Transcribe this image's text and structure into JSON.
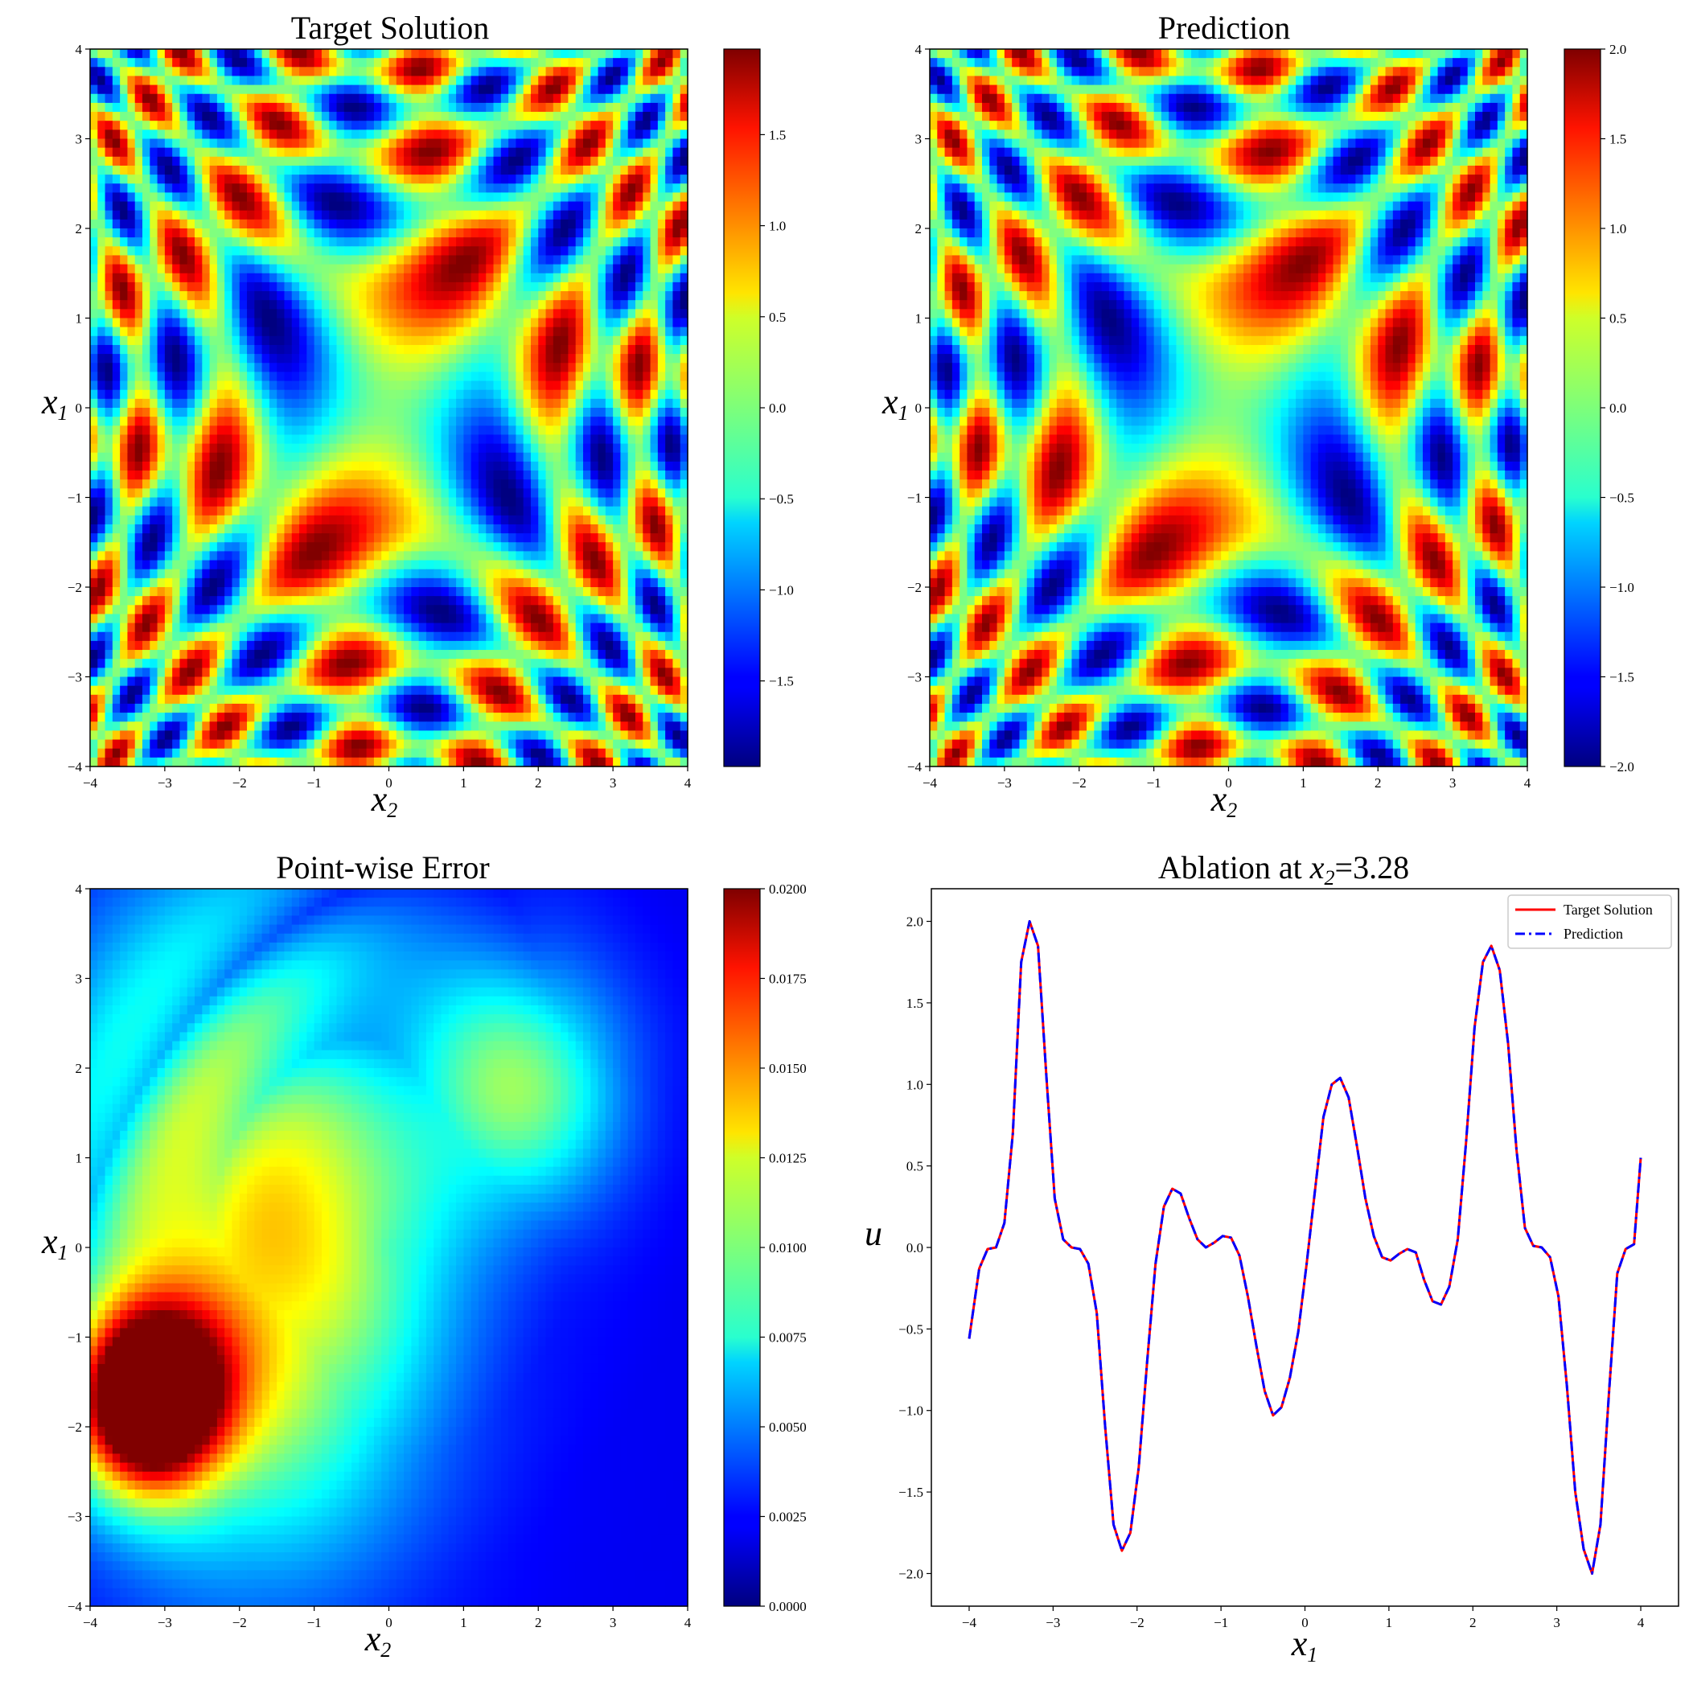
{
  "chart_data": [
    {
      "type": "heatmap",
      "title": "Target Solution",
      "xlabel": "x",
      "xlabel_sub": "2",
      "ylabel": "x",
      "ylabel_sub": "1",
      "xlim": [
        -4,
        4
      ],
      "ylim": [
        -4,
        4
      ],
      "x_ticks": [
        "−4",
        "−3",
        "−2",
        "−1",
        "0",
        "1",
        "2",
        "3",
        "4"
      ],
      "y_ticks": [
        "−4",
        "−3",
        "−2",
        "−1",
        "0",
        "1",
        "2",
        "3",
        "4"
      ],
      "colorbar": {
        "colormap": "jet",
        "range": [
          -1.97,
          1.97
        ],
        "tick_values": [
          -1.5,
          -1.0,
          -0.5,
          0.0,
          0.5,
          1.0,
          1.5
        ],
        "tick_labels": [
          "−1.5",
          "−1.0",
          "−0.5",
          "0.0",
          "0.5",
          "1.0",
          "1.5"
        ]
      },
      "field": "oscillatory saddle pattern, max ≈ 2 along x1 = x2 diagonals"
    },
    {
      "type": "heatmap",
      "title": "Prediction",
      "xlabel": "x",
      "xlabel_sub": "2",
      "ylabel": "x",
      "ylabel_sub": "1",
      "xlim": [
        -4,
        4
      ],
      "ylim": [
        -4,
        4
      ],
      "x_ticks": [
        "−4",
        "−3",
        "−2",
        "−1",
        "0",
        "1",
        "2",
        "3",
        "4"
      ],
      "y_ticks": [
        "−4",
        "−3",
        "−2",
        "−1",
        "0",
        "1",
        "2",
        "3",
        "4"
      ],
      "colorbar": {
        "colormap": "jet",
        "range": [
          -2.0,
          2.0
        ],
        "tick_values": [
          -2.0,
          -1.5,
          -1.0,
          -0.5,
          0.0,
          0.5,
          1.0,
          1.5,
          2.0
        ],
        "tick_labels": [
          "−2.0",
          "−1.5",
          "−1.0",
          "−0.5",
          "0.0",
          "0.5",
          "1.0",
          "1.5",
          "2.0"
        ]
      }
    },
    {
      "type": "heatmap",
      "title": "Point-wise Error",
      "xlabel": "x",
      "xlabel_sub": "2",
      "ylabel": "x",
      "ylabel_sub": "1",
      "xlim": [
        -4,
        4
      ],
      "ylim": [
        -4,
        4
      ],
      "x_ticks": [
        "−4",
        "−3",
        "−2",
        "−1",
        "0",
        "1",
        "2",
        "3",
        "4"
      ],
      "y_ticks": [
        "−4",
        "−3",
        "−2",
        "−1",
        "0",
        "1",
        "2",
        "3",
        "4"
      ],
      "colorbar": {
        "colormap": "jet",
        "range": [
          0.0,
          0.02
        ],
        "tick_values": [
          0.0,
          0.0025,
          0.005,
          0.0075,
          0.01,
          0.0125,
          0.015,
          0.0175,
          0.02
        ],
        "tick_labels": [
          "0.0000",
          "0.0025",
          "0.0050",
          "0.0075",
          "0.0100",
          "0.0125",
          "0.0150",
          "0.0175",
          "0.0200"
        ]
      },
      "hotspots": [
        {
          "x2": -3.2,
          "x1": -1.7,
          "value": 0.02
        },
        {
          "x2": 1.8,
          "x1": 1.9,
          "value": 0.013
        }
      ]
    },
    {
      "type": "line",
      "title_prefix": "Ablation at ",
      "title_var": "x",
      "title_sub": "2",
      "title_suffix": "=3.28",
      "xlabel": "x",
      "xlabel_sub": "1",
      "ylabel": "u",
      "xlim": [
        -4.45,
        4.45
      ],
      "ylim": [
        -2.2,
        2.2
      ],
      "x_ticks": [
        -4,
        -3,
        -2,
        -1,
        0,
        1,
        2,
        3,
        4
      ],
      "x_tick_labels": [
        "−4",
        "−3",
        "−2",
        "−1",
        "0",
        "1",
        "2",
        "3",
        "4"
      ],
      "y_ticks": [
        -2.0,
        -1.5,
        -1.0,
        -0.5,
        0.0,
        0.5,
        1.0,
        1.5,
        2.0
      ],
      "y_tick_labels": [
        "−2.0",
        "−1.5",
        "−1.0",
        "−0.5",
        "0.0",
        "0.5",
        "1.0",
        "1.5",
        "2.0"
      ],
      "legend_position": "top-right",
      "x": [
        -4.0,
        -3.88,
        -3.78,
        -3.68,
        -3.58,
        -3.48,
        -3.38,
        -3.28,
        -3.18,
        -3.08,
        -2.98,
        -2.88,
        -2.78,
        -2.68,
        -2.58,
        -2.48,
        -2.38,
        -2.28,
        -2.18,
        -2.08,
        -1.98,
        -1.88,
        -1.78,
        -1.68,
        -1.58,
        -1.48,
        -1.38,
        -1.28,
        -1.18,
        -1.08,
        -0.98,
        -0.88,
        -0.78,
        -0.68,
        -0.58,
        -0.48,
        -0.38,
        -0.28,
        -0.18,
        -0.08,
        0.02,
        0.12,
        0.22,
        0.32,
        0.42,
        0.52,
        0.62,
        0.72,
        0.82,
        0.92,
        1.02,
        1.12,
        1.22,
        1.32,
        1.42,
        1.52,
        1.62,
        1.72,
        1.82,
        1.92,
        2.02,
        2.12,
        2.22,
        2.32,
        2.42,
        2.52,
        2.62,
        2.72,
        2.82,
        2.92,
        3.02,
        3.12,
        3.22,
        3.32,
        3.42,
        3.52,
        3.62,
        3.72,
        3.82,
        3.92,
        4.0
      ],
      "series": [
        {
          "name": "Target Solution",
          "color": "#ff0000",
          "style": "solid",
          "values": [
            -0.56,
            -0.13,
            -0.01,
            0.0,
            0.15,
            0.7,
            1.75,
            2.0,
            1.85,
            1.05,
            0.3,
            0.05,
            0.0,
            -0.01,
            -0.1,
            -0.4,
            -1.1,
            -1.7,
            -1.86,
            -1.75,
            -1.35,
            -0.7,
            -0.1,
            0.25,
            0.36,
            0.33,
            0.18,
            0.05,
            0.0,
            0.03,
            0.07,
            0.06,
            -0.05,
            -0.3,
            -0.6,
            -0.88,
            -1.03,
            -0.98,
            -0.8,
            -0.52,
            -0.1,
            0.35,
            0.8,
            1.0,
            1.04,
            0.92,
            0.62,
            0.3,
            0.07,
            -0.06,
            -0.08,
            -0.04,
            -0.01,
            -0.03,
            -0.2,
            -0.33,
            -0.35,
            -0.24,
            0.05,
            0.65,
            1.35,
            1.75,
            1.85,
            1.7,
            1.25,
            0.6,
            0.12,
            0.01,
            0.0,
            -0.06,
            -0.3,
            -0.85,
            -1.5,
            -1.85,
            -2.0,
            -1.7,
            -0.9,
            -0.16,
            -0.01,
            0.02,
            0.55
          ]
        },
        {
          "name": "Prediction",
          "color": "#0000ff",
          "style": "dashdot",
          "values": [
            -0.56,
            -0.13,
            -0.01,
            0.0,
            0.15,
            0.7,
            1.75,
            2.0,
            1.85,
            1.05,
            0.3,
            0.05,
            0.0,
            -0.01,
            -0.1,
            -0.4,
            -1.1,
            -1.7,
            -1.86,
            -1.75,
            -1.35,
            -0.7,
            -0.1,
            0.25,
            0.36,
            0.33,
            0.18,
            0.05,
            0.0,
            0.03,
            0.07,
            0.06,
            -0.05,
            -0.3,
            -0.6,
            -0.88,
            -1.03,
            -0.98,
            -0.8,
            -0.52,
            -0.1,
            0.35,
            0.8,
            1.0,
            1.04,
            0.92,
            0.62,
            0.3,
            0.07,
            -0.06,
            -0.08,
            -0.04,
            -0.01,
            -0.03,
            -0.2,
            -0.33,
            -0.35,
            -0.24,
            0.05,
            0.65,
            1.35,
            1.75,
            1.85,
            1.7,
            1.25,
            0.6,
            0.12,
            0.01,
            0.0,
            -0.06,
            -0.3,
            -0.85,
            -1.5,
            -1.85,
            -2.0,
            -1.7,
            -0.9,
            -0.16,
            -0.01,
            0.02,
            0.55
          ]
        }
      ]
    }
  ]
}
